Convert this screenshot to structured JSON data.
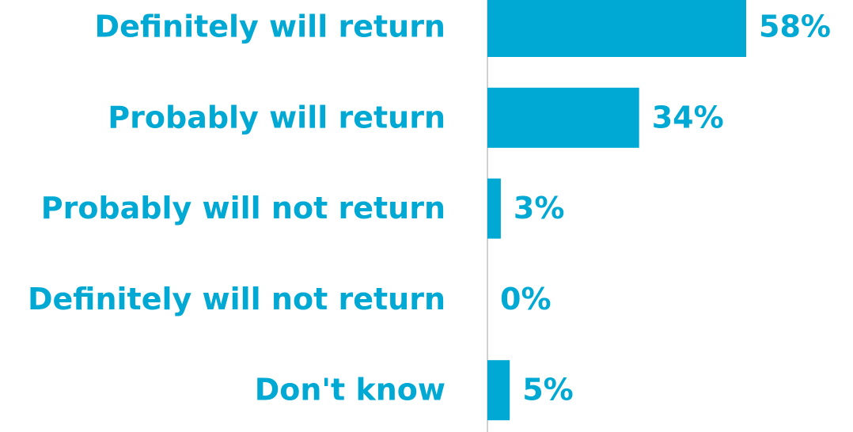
{
  "chart_data": {
    "type": "bar",
    "orientation": "horizontal",
    "categories": [
      "Definitely will return",
      "Probably will return",
      "Probably will not return",
      "Definitely will not return",
      "Don't know"
    ],
    "values": [
      58,
      34,
      3,
      0,
      5
    ],
    "value_labels": [
      "58%",
      "34%",
      "3%",
      "0%",
      "5%"
    ],
    "color": "#00a9d4"
  }
}
